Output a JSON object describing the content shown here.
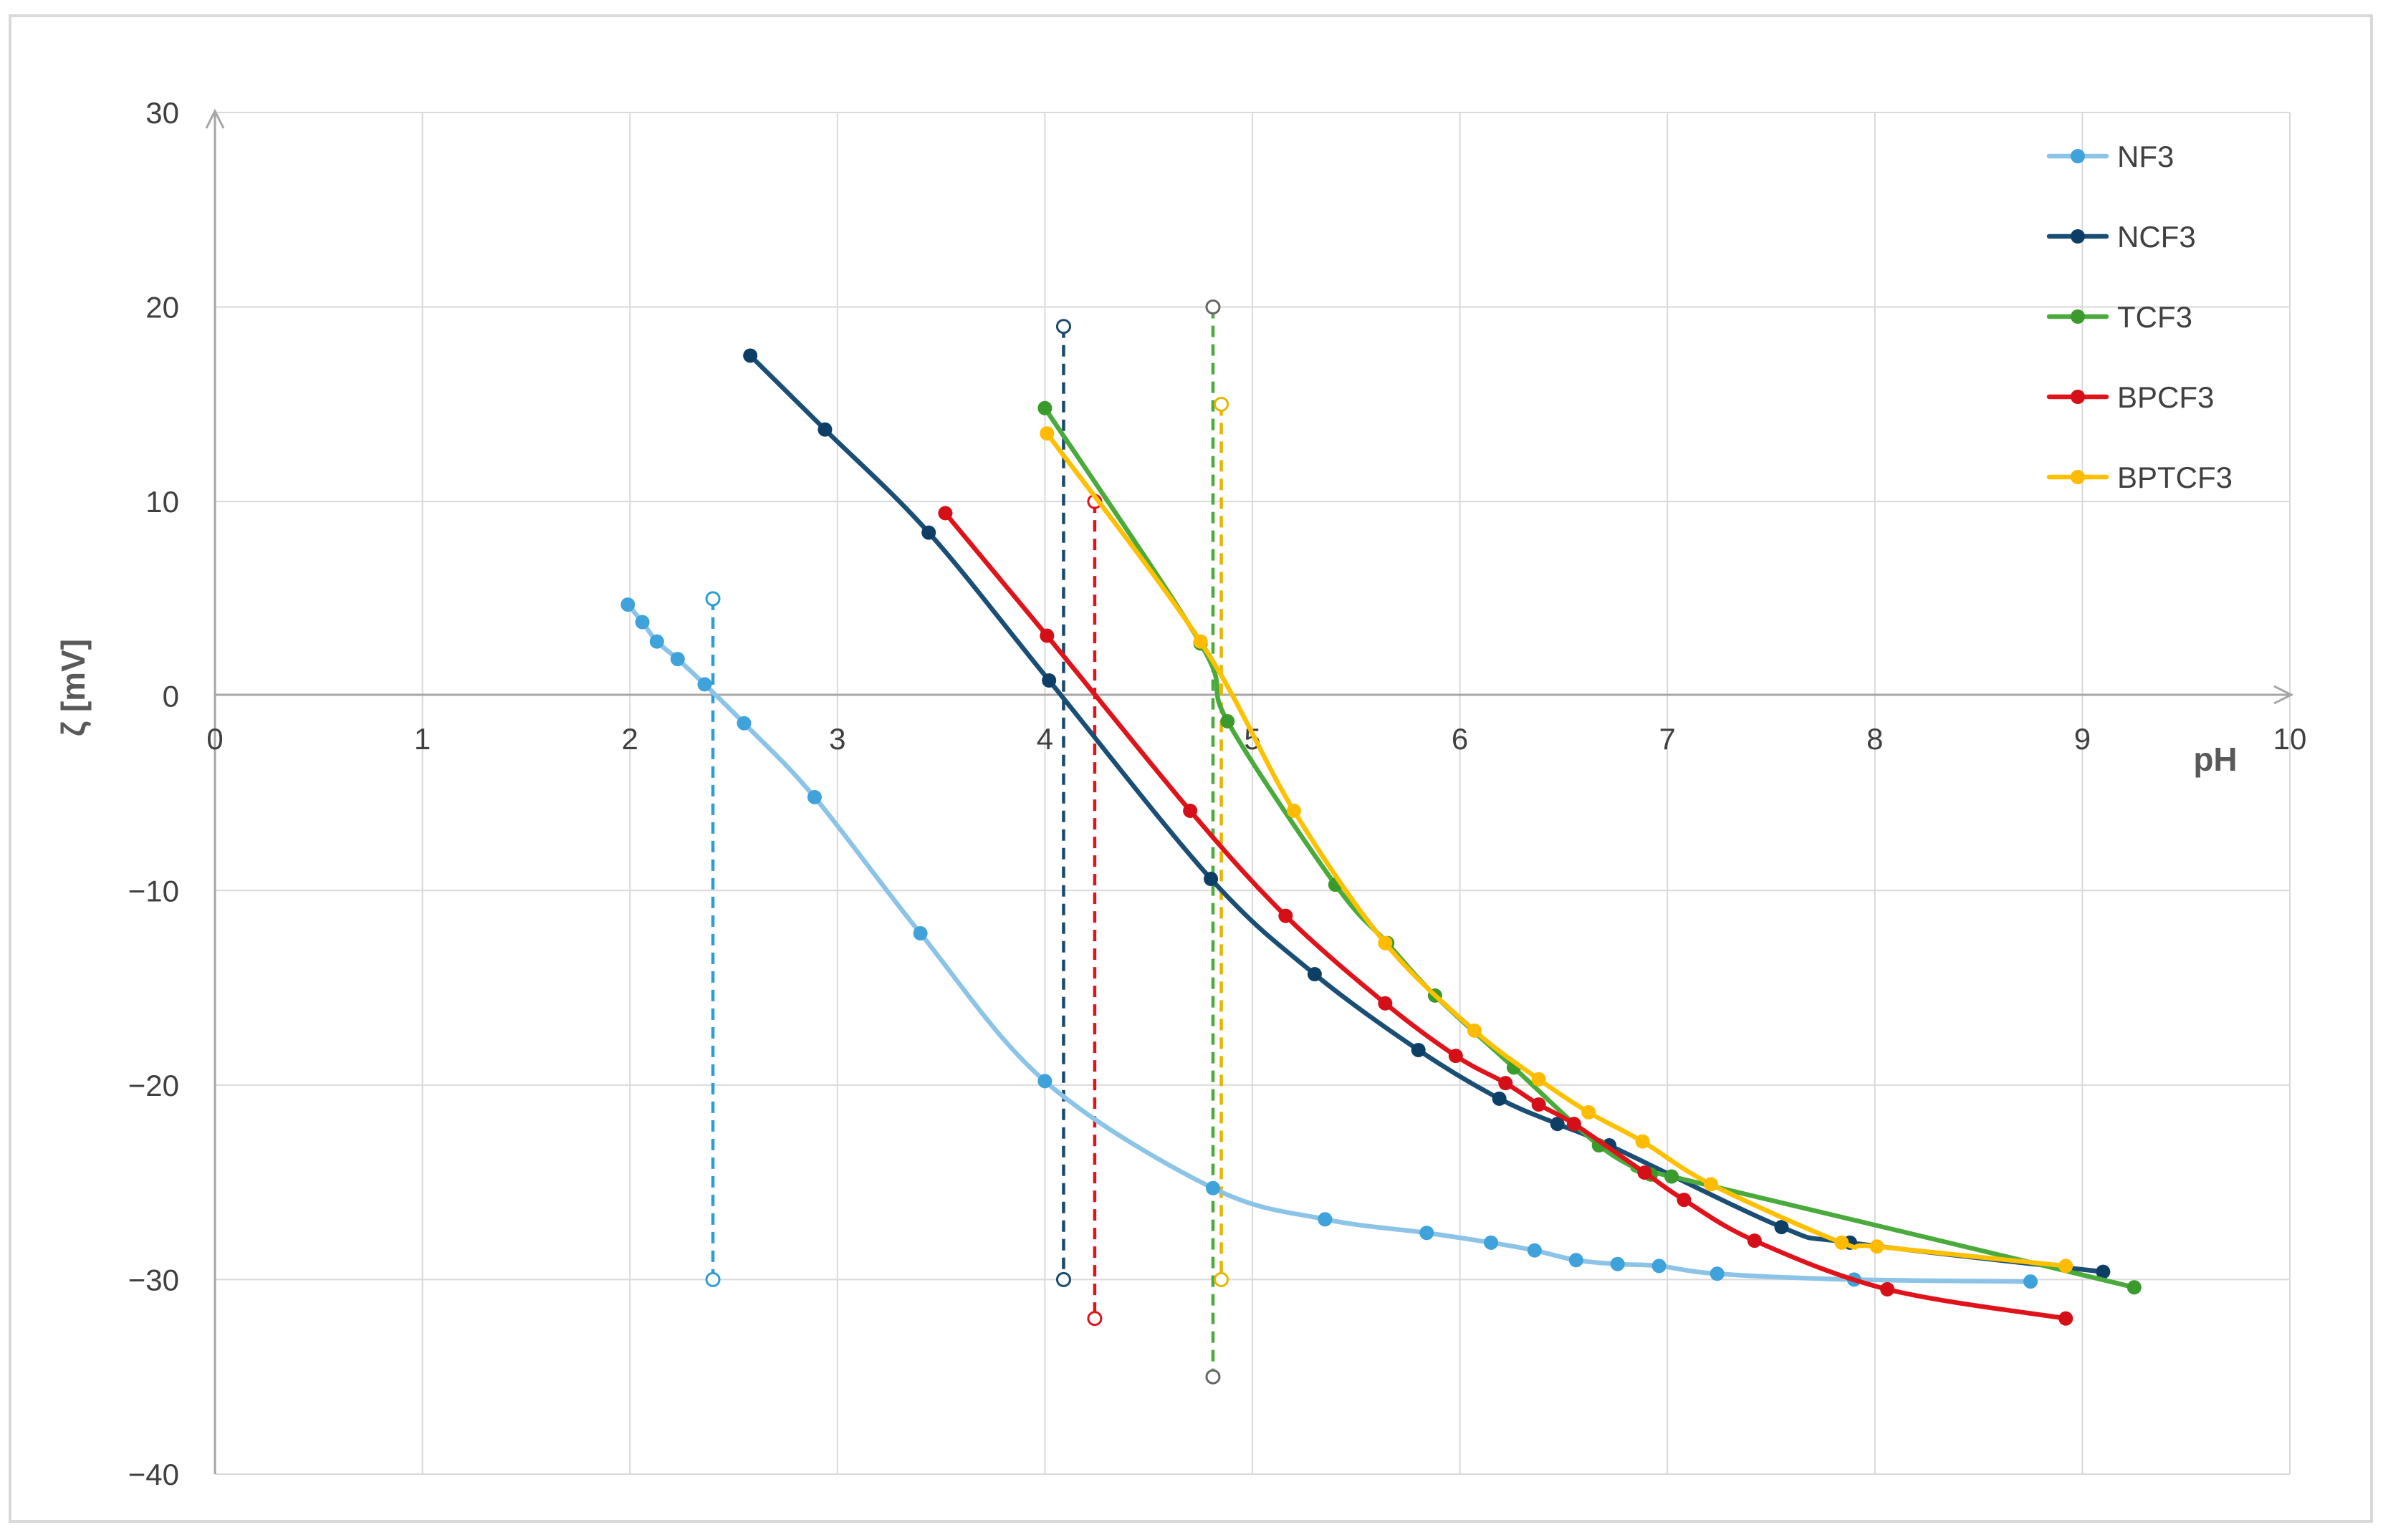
{
  "chart_data": {
    "type": "line",
    "title": "",
    "xlabel": "pH",
    "ylabel": "ζ [mV]",
    "xlim": [
      0,
      10
    ],
    "ylim": [
      -40,
      30
    ],
    "xticks": [
      0,
      1,
      2,
      3,
      4,
      5,
      6,
      7,
      8,
      9,
      10
    ],
    "yticks": [
      -40,
      -30,
      -20,
      -10,
      0,
      10,
      20,
      30
    ],
    "xtick_labels": [
      "0",
      "1",
      "2",
      "3",
      "4",
      "5",
      "6",
      "7",
      "8",
      "9",
      "10"
    ],
    "ytick_labels": [
      "−40",
      "−30",
      "−20",
      "−10",
      "0",
      "10",
      "20",
      "30"
    ],
    "grid": true,
    "legend_position": "top-right",
    "series": [
      {
        "name": "NF3",
        "color": "#8cc4e8",
        "marker_color": "#3fa2da",
        "points": [
          [
            1.99,
            4.7
          ],
          [
            2.06,
            3.8
          ],
          [
            2.13,
            2.8
          ],
          [
            2.23,
            1.9
          ],
          [
            2.36,
            0.6
          ],
          [
            2.55,
            -1.4
          ],
          [
            2.89,
            -5.2
          ],
          [
            3.4,
            -12.2
          ],
          [
            4.0,
            -19.8
          ],
          [
            4.81,
            -25.3
          ],
          [
            5.35,
            -26.9
          ],
          [
            5.84,
            -27.6
          ],
          [
            6.15,
            -28.1
          ],
          [
            6.36,
            -28.5
          ],
          [
            6.56,
            -29.0
          ],
          [
            6.76,
            -29.2
          ],
          [
            6.96,
            -29.3
          ],
          [
            7.24,
            -29.7
          ],
          [
            7.9,
            -30.0
          ],
          [
            8.75,
            -30.1
          ]
        ]
      },
      {
        "name": "NCF3",
        "color": "#1a4e75",
        "marker_color": "#0d3f66",
        "points": [
          [
            2.58,
            17.5
          ],
          [
            2.94,
            13.7
          ],
          [
            3.44,
            8.4
          ],
          [
            4.02,
            0.8
          ],
          [
            4.8,
            -9.4
          ],
          [
            5.3,
            -14.3
          ],
          [
            5.8,
            -18.2
          ],
          [
            6.19,
            -20.7
          ],
          [
            6.47,
            -22.0
          ],
          [
            6.72,
            -23.1
          ],
          [
            7.55,
            -27.3
          ],
          [
            7.88,
            -28.1
          ],
          [
            9.1,
            -29.6
          ]
        ]
      },
      {
        "name": "TCF3",
        "color": "#4aaa3c",
        "marker_color": "#3a9a2c",
        "points": [
          [
            4.0,
            14.8
          ],
          [
            4.75,
            2.7
          ],
          [
            4.88,
            -1.3
          ],
          [
            5.4,
            -9.7
          ],
          [
            5.65,
            -12.7
          ],
          [
            5.88,
            -15.4
          ],
          [
            6.26,
            -19.1
          ],
          [
            6.67,
            -23.1
          ],
          [
            6.92,
            -24.6
          ],
          [
            7.02,
            -24.7
          ],
          [
            9.25,
            -30.4
          ]
        ]
      },
      {
        "name": "BPCF3",
        "color": "#e0131b",
        "marker_color": "#d50f17",
        "points": [
          [
            3.52,
            9.4
          ],
          [
            4.01,
            3.1
          ],
          [
            4.7,
            -5.9
          ],
          [
            5.16,
            -11.3
          ],
          [
            5.64,
            -15.8
          ],
          [
            5.98,
            -18.5
          ],
          [
            6.22,
            -19.9
          ],
          [
            6.38,
            -21.0
          ],
          [
            6.55,
            -22.0
          ],
          [
            6.89,
            -24.5
          ],
          [
            7.08,
            -25.9
          ],
          [
            7.42,
            -28.0
          ],
          [
            8.06,
            -30.5
          ],
          [
            8.92,
            -32.0
          ]
        ]
      },
      {
        "name": "BPTCF3",
        "color": "#ffc000",
        "marker_color": "#ffbb00",
        "points": [
          [
            4.01,
            13.5
          ],
          [
            4.75,
            2.8
          ],
          [
            5.2,
            -5.9
          ],
          [
            5.64,
            -12.7
          ],
          [
            6.07,
            -17.2
          ],
          [
            6.38,
            -19.7
          ],
          [
            6.62,
            -21.4
          ],
          [
            6.88,
            -22.9
          ],
          [
            7.21,
            -25.1
          ],
          [
            7.84,
            -28.1
          ],
          [
            8.01,
            -28.3
          ],
          [
            8.92,
            -29.3
          ]
        ]
      }
    ],
    "iep_markers": [
      {
        "series": "NF3",
        "x": 2.4,
        "y_top": 5.0,
        "y_bottom": -30.0,
        "color": "#2a9fd6",
        "top_marker": true,
        "bottom_marker": true
      },
      {
        "series": "NCF3",
        "x": 4.09,
        "y_top": 19.0,
        "y_bottom": -30.0,
        "color": "#1a4a6b",
        "top_marker": true,
        "bottom_marker": true
      },
      {
        "series": "BPCF3",
        "x": 4.24,
        "y_top": 10.0,
        "y_bottom": -32.0,
        "color": "#e0131b",
        "top_marker": true,
        "bottom_marker": true
      },
      {
        "series": "TCF3",
        "x": 4.81,
        "y_top": 20.0,
        "y_bottom": -35.0,
        "color": "#4aaa3c",
        "marker_color": "#666666",
        "top_marker": true,
        "bottom_marker": true
      },
      {
        "series": "BPTCF3",
        "x": 4.85,
        "y_top": 15.0,
        "y_bottom": -30.0,
        "color": "#e8b400",
        "top_marker": true,
        "bottom_marker": true
      }
    ]
  }
}
